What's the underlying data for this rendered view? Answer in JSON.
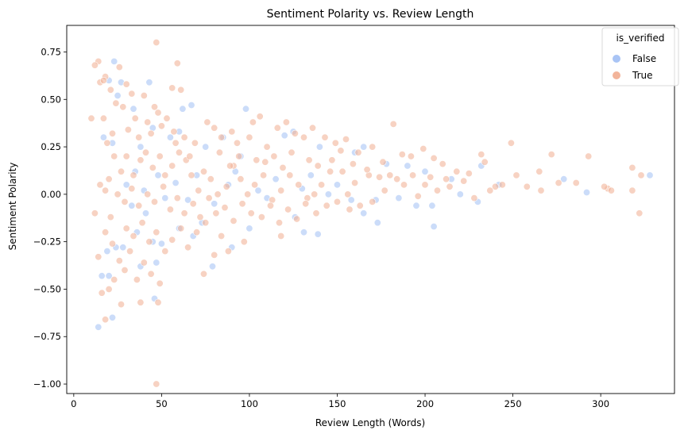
{
  "chart_data": {
    "type": "scatter",
    "title": "Sentiment Polarity vs. Review Length",
    "xlabel": "Review Length (Words)",
    "ylabel": "Sentiment Polarity",
    "xlim": [
      -4,
      342
    ],
    "ylim": [
      -1.05,
      0.89
    ],
    "xticks": [
      0,
      50,
      100,
      150,
      200,
      250,
      300
    ],
    "yticks": [
      -1.0,
      -0.75,
      -0.5,
      -0.25,
      0.0,
      0.25,
      0.5,
      0.75
    ],
    "ytick_labels": [
      "−1.00",
      "−0.75",
      "−0.50",
      "−0.25",
      "0.00",
      "0.25",
      "0.50",
      "0.75"
    ],
    "grid": false,
    "legend": {
      "title": "is_verified",
      "position": "top-right"
    },
    "series": [
      {
        "name": "False",
        "color": "#a9c4f5",
        "points": [
          [
            23,
            0.7
          ],
          [
            43,
            0.59
          ],
          [
            20,
            0.6
          ],
          [
            27,
            0.59
          ],
          [
            25,
            0.52
          ],
          [
            34,
            0.45
          ],
          [
            62,
            0.45
          ],
          [
            67,
            0.47
          ],
          [
            98,
            0.45
          ],
          [
            17,
            0.3
          ],
          [
            22,
            0.27
          ],
          [
            38,
            0.25
          ],
          [
            45,
            0.35
          ],
          [
            55,
            0.3
          ],
          [
            60,
            0.33
          ],
          [
            75,
            0.25
          ],
          [
            85,
            0.3
          ],
          [
            95,
            0.2
          ],
          [
            120,
            0.31
          ],
          [
            125,
            0.33
          ],
          [
            140,
            0.25
          ],
          [
            160,
            0.22
          ],
          [
            165,
            0.25
          ],
          [
            178,
            0.16
          ],
          [
            190,
            0.15
          ],
          [
            200,
            0.12
          ],
          [
            215,
            0.08
          ],
          [
            232,
            0.15
          ],
          [
            242,
            0.05
          ],
          [
            279,
            0.08
          ],
          [
            292,
            0.01
          ],
          [
            328,
            0.1
          ],
          [
            30,
            0.05
          ],
          [
            35,
            0.12
          ],
          [
            40,
            0.02
          ],
          [
            48,
            0.1
          ],
          [
            52,
            -0.02
          ],
          [
            58,
            0.06
          ],
          [
            65,
            -0.03
          ],
          [
            70,
            0.1
          ],
          [
            80,
            -0.05
          ],
          [
            88,
            0.05
          ],
          [
            92,
            0.12
          ],
          [
            105,
            0.02
          ],
          [
            110,
            -0.02
          ],
          [
            115,
            0.08
          ],
          [
            130,
            0.03
          ],
          [
            135,
            0.1
          ],
          [
            145,
            0.0
          ],
          [
            150,
            0.05
          ],
          [
            158,
            -0.03
          ],
          [
            165,
            -0.1
          ],
          [
            172,
            -0.03
          ],
          [
            173,
            -0.15
          ],
          [
            185,
            -0.02
          ],
          [
            195,
            -0.06
          ],
          [
            204,
            -0.06
          ],
          [
            205,
            -0.17
          ],
          [
            220,
            0.0
          ],
          [
            230,
            -0.04
          ],
          [
            16,
            -0.43
          ],
          [
            19,
            -0.3
          ],
          [
            20,
            -0.43
          ],
          [
            22,
            -0.65
          ],
          [
            24,
            -0.28
          ],
          [
            28,
            -0.28
          ],
          [
            36,
            -0.2
          ],
          [
            38,
            -0.38
          ],
          [
            45,
            -0.25
          ],
          [
            47,
            -0.36
          ],
          [
            50,
            -0.26
          ],
          [
            46,
            -0.55
          ],
          [
            60,
            -0.18
          ],
          [
            68,
            -0.22
          ],
          [
            73,
            -0.15
          ],
          [
            79,
            -0.38
          ],
          [
            90,
            -0.28
          ],
          [
            100,
            -0.18
          ],
          [
            126,
            -0.12
          ],
          [
            131,
            -0.2
          ],
          [
            139,
            -0.21
          ],
          [
            14,
            -0.7
          ],
          [
            33,
            -0.06
          ],
          [
            41,
            -0.1
          ]
        ]
      },
      {
        "name": "True",
        "color": "#f2b49a",
        "points": [
          [
            47,
            0.8
          ],
          [
            14,
            0.7
          ],
          [
            12,
            0.68
          ],
          [
            18,
            0.62
          ],
          [
            59,
            0.69
          ],
          [
            26,
            0.67
          ],
          [
            10,
            0.4
          ],
          [
            15,
            0.59
          ],
          [
            17,
            0.6
          ],
          [
            21,
            0.55
          ],
          [
            30,
            0.58
          ],
          [
            33,
            0.53
          ],
          [
            40,
            0.52
          ],
          [
            46,
            0.46
          ],
          [
            56,
            0.56
          ],
          [
            61,
            0.55
          ],
          [
            48,
            0.43
          ],
          [
            53,
            0.4
          ],
          [
            24,
            0.48
          ],
          [
            28,
            0.46
          ],
          [
            35,
            0.4
          ],
          [
            42,
            0.38
          ],
          [
            17,
            0.4
          ],
          [
            19,
            0.27
          ],
          [
            22,
            0.32
          ],
          [
            31,
            0.34
          ],
          [
            37,
            0.3
          ],
          [
            44,
            0.32
          ],
          [
            50,
            0.36
          ],
          [
            57,
            0.33
          ],
          [
            63,
            0.3
          ],
          [
            69,
            0.27
          ],
          [
            76,
            0.38
          ],
          [
            80,
            0.35
          ],
          [
            84,
            0.3
          ],
          [
            90,
            0.33
          ],
          [
            93,
            0.27
          ],
          [
            100,
            0.3
          ],
          [
            102,
            0.38
          ],
          [
            106,
            0.41
          ],
          [
            110,
            0.25
          ],
          [
            116,
            0.35
          ],
          [
            121,
            0.38
          ],
          [
            126,
            0.32
          ],
          [
            131,
            0.3
          ],
          [
            136,
            0.35
          ],
          [
            143,
            0.3
          ],
          [
            149,
            0.27
          ],
          [
            152,
            0.23
          ],
          [
            155,
            0.29
          ],
          [
            162,
            0.22
          ],
          [
            170,
            0.25
          ],
          [
            176,
            0.17
          ],
          [
            182,
            0.37
          ],
          [
            187,
            0.21
          ],
          [
            192,
            0.2
          ],
          [
            199,
            0.24
          ],
          [
            205,
            0.19
          ],
          [
            210,
            0.16
          ],
          [
            218,
            0.12
          ],
          [
            225,
            0.11
          ],
          [
            232,
            0.21
          ],
          [
            234,
            0.17
          ],
          [
            249,
            0.27
          ],
          [
            252,
            0.1
          ],
          [
            265,
            0.12
          ],
          [
            272,
            0.21
          ],
          [
            276,
            0.06
          ],
          [
            286,
            0.06
          ],
          [
            293,
            0.2
          ],
          [
            304,
            0.03
          ],
          [
            306,
            0.02
          ],
          [
            318,
            0.14
          ],
          [
            323,
            0.1
          ],
          [
            322,
            -0.1
          ],
          [
            318,
            0.02
          ],
          [
            266,
            0.02
          ],
          [
            240,
            0.04
          ],
          [
            237,
            0.02
          ],
          [
            228,
            -0.02
          ],
          [
            212,
            0.08
          ],
          [
            207,
            0.02
          ],
          [
            200,
            0.05
          ],
          [
            196,
            -0.01
          ],
          [
            188,
            0.05
          ],
          [
            180,
            0.1
          ],
          [
            177,
            0.02
          ],
          [
            168,
            0.1
          ],
          [
            160,
            0.06
          ],
          [
            156,
            0.0
          ],
          [
            146,
            0.12
          ],
          [
            141,
            0.05
          ],
          [
            137,
            0.0
          ],
          [
            133,
            -0.02
          ],
          [
            128,
            0.05
          ],
          [
            123,
            0.1
          ],
          [
            118,
            0.02
          ],
          [
            113,
            -0.03
          ],
          [
            108,
            0.1
          ],
          [
            103,
            0.05
          ],
          [
            99,
            0.0
          ],
          [
            95,
            0.08
          ],
          [
            91,
            0.15
          ],
          [
            87,
            0.04
          ],
          [
            82,
            0.0
          ],
          [
            78,
            0.08
          ],
          [
            74,
            0.12
          ],
          [
            71,
            0.02
          ],
          [
            67,
            0.1
          ],
          [
            64,
            0.18
          ],
          [
            60,
            0.22
          ],
          [
            56,
            0.15
          ],
          [
            52,
            0.1
          ],
          [
            49,
            0.2
          ],
          [
            45,
            0.14
          ],
          [
            41,
            0.22
          ],
          [
            38,
            0.18
          ],
          [
            34,
            0.1
          ],
          [
            30,
            0.2
          ],
          [
            27,
            0.12
          ],
          [
            23,
            0.2
          ],
          [
            20,
            0.08
          ],
          [
            18,
            0.02
          ],
          [
            25,
            0.0
          ],
          [
            29,
            -0.04
          ],
          [
            33,
            0.03
          ],
          [
            37,
            -0.06
          ],
          [
            42,
            0.0
          ],
          [
            46,
            -0.04
          ],
          [
            51,
            0.04
          ],
          [
            55,
            -0.08
          ],
          [
            59,
            -0.02
          ],
          [
            63,
            -0.1
          ],
          [
            68,
            -0.05
          ],
          [
            72,
            -0.12
          ],
          [
            77,
            -0.02
          ],
          [
            81,
            -0.1
          ],
          [
            86,
            -0.07
          ],
          [
            91,
            -0.14
          ],
          [
            96,
            -0.05
          ],
          [
            101,
            -0.1
          ],
          [
            107,
            -0.12
          ],
          [
            112,
            -0.06
          ],
          [
            117,
            -0.15
          ],
          [
            122,
            -0.08
          ],
          [
            127,
            -0.13
          ],
          [
            132,
            -0.05
          ],
          [
            138,
            -0.1
          ],
          [
            144,
            -0.06
          ],
          [
            150,
            -0.04
          ],
          [
            157,
            -0.08
          ],
          [
            163,
            -0.06
          ],
          [
            170,
            -0.04
          ],
          [
            30,
            -0.18
          ],
          [
            34,
            -0.22
          ],
          [
            39,
            -0.15
          ],
          [
            43,
            -0.25
          ],
          [
            47,
            -0.2
          ],
          [
            52,
            -0.3
          ],
          [
            56,
            -0.24
          ],
          [
            61,
            -0.18
          ],
          [
            65,
            -0.28
          ],
          [
            70,
            -0.2
          ],
          [
            75,
            -0.15
          ],
          [
            84,
            -0.22
          ],
          [
            88,
            -0.3
          ],
          [
            97,
            -0.25
          ],
          [
            118,
            -0.22
          ],
          [
            18,
            -0.2
          ],
          [
            22,
            -0.26
          ],
          [
            26,
            -0.35
          ],
          [
            29,
            -0.4
          ],
          [
            32,
            -0.3
          ],
          [
            36,
            -0.45
          ],
          [
            40,
            -0.36
          ],
          [
            44,
            -0.42
          ],
          [
            49,
            -0.47
          ],
          [
            14,
            -0.33
          ],
          [
            16,
            -0.52
          ],
          [
            20,
            -0.5
          ],
          [
            23,
            -0.45
          ],
          [
            27,
            -0.58
          ],
          [
            38,
            -0.57
          ],
          [
            48,
            -0.57
          ],
          [
            18,
            -0.66
          ],
          [
            47,
            -1.0
          ],
          [
            74,
            -0.42
          ],
          [
            80,
            -0.32
          ],
          [
            12,
            -0.1
          ],
          [
            15,
            0.05
          ],
          [
            21,
            -0.12
          ],
          [
            58,
            0.27
          ],
          [
            66,
            0.2
          ],
          [
            83,
            0.22
          ],
          [
            89,
            0.15
          ],
          [
            94,
            0.2
          ],
          [
            104,
            0.18
          ],
          [
            109,
            0.17
          ],
          [
            114,
            0.2
          ],
          [
            119,
            0.14
          ],
          [
            124,
            0.22
          ],
          [
            134,
            0.18
          ],
          [
            139,
            0.15
          ],
          [
            147,
            0.18
          ],
          [
            153,
            0.12
          ],
          [
            159,
            0.16
          ],
          [
            167,
            0.13
          ],
          [
            174,
            0.09
          ],
          [
            184,
            0.08
          ],
          [
            193,
            0.1
          ],
          [
            203,
            0.09
          ],
          [
            214,
            0.04
          ],
          [
            222,
            0.07
          ],
          [
            244,
            0.05
          ],
          [
            258,
            0.04
          ],
          [
            302,
            0.04
          ]
        ]
      }
    ]
  }
}
